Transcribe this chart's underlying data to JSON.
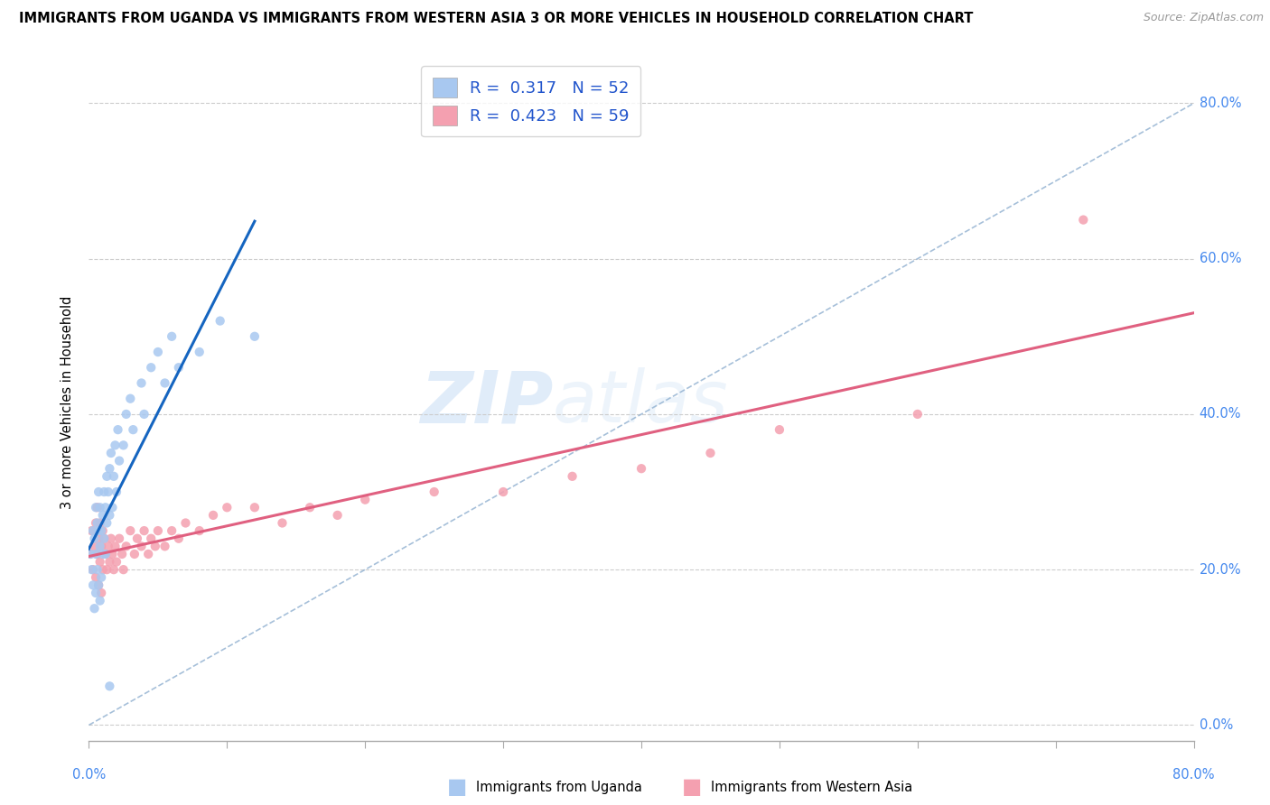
{
  "title": "IMMIGRANTS FROM UGANDA VS IMMIGRANTS FROM WESTERN ASIA 3 OR MORE VEHICLES IN HOUSEHOLD CORRELATION CHART",
  "source": "Source: ZipAtlas.com",
  "ylabel": "3 or more Vehicles in Household",
  "uganda_R": "0.317",
  "uganda_N": "52",
  "western_asia_R": "0.423",
  "western_asia_N": "59",
  "uganda_color": "#a8c8f0",
  "western_asia_color": "#f4a0b0",
  "uganda_line_color": "#1565C0",
  "western_asia_line_color": "#e06080",
  "diagonal_color": "#90b0d0",
  "watermark_zip": "ZIP",
  "watermark_atlas": "atlas",
  "legend_label_uganda": "Immigrants from Uganda",
  "legend_label_western_asia": "Immigrants from Western Asia",
  "xlim": [
    0.0,
    0.8
  ],
  "ylim": [
    -0.02,
    0.85
  ],
  "uganda_x": [
    0.001,
    0.002,
    0.003,
    0.003,
    0.004,
    0.004,
    0.005,
    0.005,
    0.005,
    0.006,
    0.006,
    0.007,
    0.007,
    0.007,
    0.008,
    0.008,
    0.008,
    0.009,
    0.009,
    0.01,
    0.01,
    0.011,
    0.011,
    0.012,
    0.012,
    0.013,
    0.013,
    0.014,
    0.015,
    0.015,
    0.016,
    0.017,
    0.018,
    0.019,
    0.02,
    0.021,
    0.022,
    0.025,
    0.027,
    0.03,
    0.032,
    0.038,
    0.04,
    0.045,
    0.05,
    0.055,
    0.06,
    0.065,
    0.08,
    0.095,
    0.12,
    0.015
  ],
  "uganda_y": [
    0.22,
    0.2,
    0.25,
    0.18,
    0.24,
    0.15,
    0.28,
    0.22,
    0.17,
    0.26,
    0.2,
    0.3,
    0.25,
    0.18,
    0.28,
    0.23,
    0.16,
    0.25,
    0.19,
    0.27,
    0.22,
    0.3,
    0.24,
    0.28,
    0.22,
    0.32,
    0.26,
    0.3,
    0.33,
    0.27,
    0.35,
    0.28,
    0.32,
    0.36,
    0.3,
    0.38,
    0.34,
    0.36,
    0.4,
    0.42,
    0.38,
    0.44,
    0.4,
    0.46,
    0.48,
    0.44,
    0.5,
    0.46,
    0.48,
    0.52,
    0.5,
    0.05
  ],
  "wa_x": [
    0.001,
    0.002,
    0.003,
    0.004,
    0.005,
    0.005,
    0.006,
    0.006,
    0.007,
    0.007,
    0.008,
    0.008,
    0.009,
    0.009,
    0.01,
    0.01,
    0.011,
    0.012,
    0.013,
    0.014,
    0.015,
    0.016,
    0.017,
    0.018,
    0.019,
    0.02,
    0.022,
    0.024,
    0.025,
    0.027,
    0.03,
    0.033,
    0.035,
    0.038,
    0.04,
    0.043,
    0.045,
    0.048,
    0.05,
    0.055,
    0.06,
    0.065,
    0.07,
    0.08,
    0.09,
    0.1,
    0.12,
    0.14,
    0.16,
    0.18,
    0.2,
    0.25,
    0.3,
    0.35,
    0.4,
    0.45,
    0.5,
    0.6,
    0.72
  ],
  "wa_y": [
    0.22,
    0.25,
    0.2,
    0.23,
    0.26,
    0.19,
    0.28,
    0.22,
    0.24,
    0.18,
    0.26,
    0.21,
    0.23,
    0.17,
    0.25,
    0.2,
    0.24,
    0.22,
    0.2,
    0.23,
    0.21,
    0.24,
    0.22,
    0.2,
    0.23,
    0.21,
    0.24,
    0.22,
    0.2,
    0.23,
    0.25,
    0.22,
    0.24,
    0.23,
    0.25,
    0.22,
    0.24,
    0.23,
    0.25,
    0.23,
    0.25,
    0.24,
    0.26,
    0.25,
    0.27,
    0.28,
    0.28,
    0.26,
    0.28,
    0.27,
    0.29,
    0.3,
    0.3,
    0.32,
    0.33,
    0.35,
    0.38,
    0.4,
    0.65
  ]
}
